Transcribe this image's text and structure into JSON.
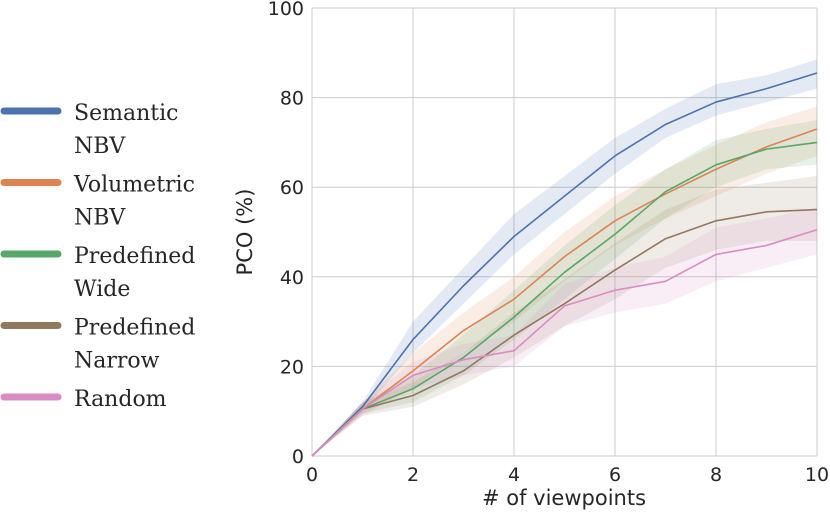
{
  "chart_data": {
    "type": "line",
    "title": "",
    "xlabel": "# of viewpoints",
    "ylabel": "PCO (%)",
    "xlim": [
      0,
      10
    ],
    "ylim": [
      0,
      100
    ],
    "x_ticks": [
      "0",
      "2",
      "4",
      "6",
      "8",
      "10"
    ],
    "y_ticks": [
      "0",
      "20",
      "40",
      "60",
      "80",
      "100"
    ],
    "grid": true,
    "legend_position": "left",
    "x": [
      0,
      1,
      2,
      3,
      4,
      5,
      6,
      7,
      8,
      9,
      10
    ],
    "series": [
      {
        "name": "Semantic NBV",
        "legend_lines": [
          "Semantic",
          "NBV"
        ],
        "color": "#4c72b0",
        "values": [
          0,
          11,
          26,
          38,
          49,
          58,
          67,
          74,
          79,
          82,
          85.5
        ],
        "band": [
          [
            0,
            0
          ],
          [
            10,
            12
          ],
          [
            23,
            30
          ],
          [
            34,
            42
          ],
          [
            45,
            54
          ],
          [
            54,
            62.5
          ],
          [
            63,
            71
          ],
          [
            71,
            77.5
          ],
          [
            76,
            83
          ],
          [
            79,
            85
          ],
          [
            82,
            88.5
          ]
        ]
      },
      {
        "name": "Volumetric NBV",
        "legend_lines": [
          "Volumetric",
          "NBV"
        ],
        "color": "#dd8452",
        "values": [
          0,
          10.5,
          19,
          28,
          35,
          44.5,
          52.5,
          58.5,
          64,
          69,
          73
        ],
        "band": [
          [
            0,
            0
          ],
          [
            9.5,
            12
          ],
          [
            15,
            23
          ],
          [
            23,
            32
          ],
          [
            30,
            40
          ],
          [
            39,
            50
          ],
          [
            47,
            58
          ],
          [
            53,
            64
          ],
          [
            58,
            69.5
          ],
          [
            63,
            74.5
          ],
          [
            67,
            78
          ]
        ]
      },
      {
        "name": "Predefined Wide",
        "legend_lines": [
          "Predefined",
          "Wide"
        ],
        "color": "#55a868",
        "values": [
          0,
          10.5,
          15,
          22,
          31,
          41,
          49.5,
          59,
          65,
          68.5,
          70
        ],
        "band": [
          [
            0,
            0
          ],
          [
            9.5,
            12
          ],
          [
            12,
            18
          ],
          [
            18,
            27
          ],
          [
            26,
            37
          ],
          [
            35,
            47
          ],
          [
            44,
            56
          ],
          [
            53,
            64
          ],
          [
            60,
            70.5
          ],
          [
            64,
            73
          ],
          [
            65,
            75
          ]
        ]
      },
      {
        "name": "Predefined Narrow",
        "legend_lines": [
          "Predefined",
          "Narrow"
        ],
        "color": "#937860",
        "values": [
          0,
          10.5,
          13.5,
          19,
          27,
          34,
          41.5,
          48.5,
          52.5,
          54.5,
          55
        ],
        "band": [
          [
            0,
            0
          ],
          [
            9,
            12
          ],
          [
            11,
            16.5
          ],
          [
            16,
            23
          ],
          [
            22,
            32
          ],
          [
            29,
            39.5
          ],
          [
            35,
            47.5
          ],
          [
            42,
            55
          ],
          [
            46,
            59.5
          ],
          [
            48,
            61
          ],
          [
            48,
            62.5
          ]
        ]
      },
      {
        "name": "Random",
        "legend_lines": [
          "Random"
        ],
        "color": "#da8bc3",
        "values": [
          0,
          10.5,
          18,
          21.5,
          23.5,
          33.5,
          37,
          39,
          45,
          47,
          50.5
        ],
        "band": [
          [
            0,
            0
          ],
          [
            9,
            12
          ],
          [
            15,
            21
          ],
          [
            18,
            25
          ],
          [
            20,
            27
          ],
          [
            29,
            38.5
          ],
          [
            32,
            42
          ],
          [
            34,
            44.5
          ],
          [
            39,
            51
          ],
          [
            42,
            53
          ],
          [
            45,
            55.5
          ]
        ]
      }
    ]
  }
}
